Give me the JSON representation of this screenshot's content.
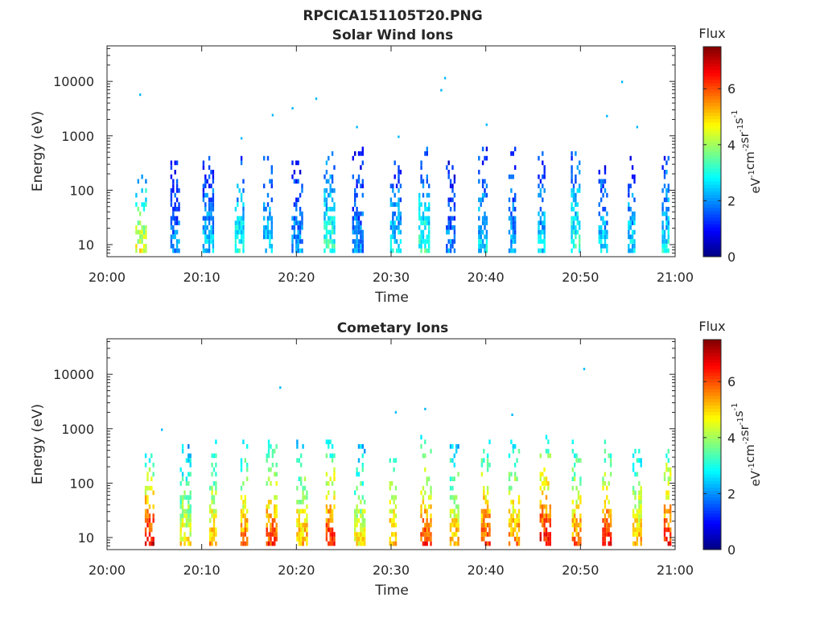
{
  "figure": {
    "title": "RPCICA151105T20.PNG"
  },
  "chart_data": [
    {
      "type": "heatmap",
      "title": "Solar Wind Ions",
      "xlabel": "Time",
      "ylabel": "Energy (eV)",
      "x_ticks": [
        "20:00",
        "20:10",
        "20:20",
        "20:30",
        "20:40",
        "20:50",
        "21:00"
      ],
      "x_range": [
        "20:00",
        "21:00"
      ],
      "y_ticks": [
        "10",
        "100",
        "1000",
        "10000"
      ],
      "y_range": [
        6,
        45000
      ],
      "y_scale": "log",
      "grid": false,
      "colorbar": {
        "label": "Flux",
        "unit": "eV-1cm-2sr-1s-1",
        "ticks": [
          "0",
          "2",
          "4",
          "6"
        ],
        "range": [
          0,
          7.5
        ],
        "colormap": "jet"
      },
      "bursts": [
        {
          "time": "20:03.6",
          "value": 4.6,
          "emax": 180
        },
        {
          "time": "20:07.2",
          "value": 2.0,
          "emax": 400
        },
        {
          "time": "20:10.7",
          "value": 2.4,
          "emax": 420
        },
        {
          "time": "20:14.0",
          "value": 3.0,
          "emax": 400
        },
        {
          "time": "20:17.0",
          "value": 2.6,
          "emax": 380
        },
        {
          "time": "20:20.1",
          "value": 2.2,
          "emax": 300
        },
        {
          "time": "20:23.5",
          "value": 3.2,
          "emax": 550
        },
        {
          "time": "20:26.5",
          "value": 2.0,
          "emax": 550
        },
        {
          "time": "20:30.5",
          "value": 2.6,
          "emax": 350
        },
        {
          "time": "20:33.5",
          "value": 3.2,
          "emax": 550
        },
        {
          "time": "20:36.3",
          "value": 2.0,
          "emax": 350
        },
        {
          "time": "20:39.7",
          "value": 2.6,
          "emax": 550
        },
        {
          "time": "20:42.8",
          "value": 2.2,
          "emax": 550
        },
        {
          "time": "20:45.9",
          "value": 2.6,
          "emax": 500
        },
        {
          "time": "20:49.5",
          "value": 3.2,
          "emax": 500
        },
        {
          "time": "20:52.4",
          "value": 2.6,
          "emax": 250
        },
        {
          "time": "20:55.4",
          "value": 2.6,
          "emax": 400
        },
        {
          "time": "20:59.0",
          "value": 2.8,
          "emax": 500
        }
      ],
      "isolated_points": [
        {
          "time": "20:03.5",
          "energy": 5700
        },
        {
          "time": "20:14.2",
          "energy": 900
        },
        {
          "time": "20:17.5",
          "energy": 2400
        },
        {
          "time": "20:19.6",
          "energy": 3200
        },
        {
          "time": "20:22.1",
          "energy": 4800
        },
        {
          "time": "20:26.4",
          "energy": 1450
        },
        {
          "time": "20:30.8",
          "energy": 960
        },
        {
          "time": "20:35.7",
          "energy": 11500
        },
        {
          "time": "20:35.3",
          "energy": 6900
        },
        {
          "time": "20:40.1",
          "energy": 1600
        },
        {
          "time": "20:54.4",
          "energy": 9800
        },
        {
          "time": "20:52.8",
          "energy": 2300
        },
        {
          "time": "20:56.0",
          "energy": 1450
        }
      ]
    },
    {
      "type": "heatmap",
      "title": "Cometary Ions",
      "xlabel": "Time",
      "ylabel": "Energy (eV)",
      "x_ticks": [
        "20:00",
        "20:10",
        "20:20",
        "20:30",
        "20:40",
        "20:50",
        "21:00"
      ],
      "x_range": [
        "20:00",
        "21:00"
      ],
      "y_ticks": [
        "10",
        "100",
        "1000",
        "10000"
      ],
      "y_range": [
        6,
        45000
      ],
      "y_scale": "log",
      "grid": false,
      "colorbar": {
        "label": "Flux",
        "unit": "eV-1cm-2sr-1s-1",
        "ticks": [
          "0",
          "2",
          "4",
          "6"
        ],
        "range": [
          0,
          7.5
        ],
        "colormap": "jet"
      },
      "bursts": [
        {
          "time": "20:04.5",
          "value": 6.8,
          "emax": 300
        },
        {
          "time": "20:08.3",
          "value": 4.8,
          "emax": 500
        },
        {
          "time": "20:11.2",
          "value": 5.4,
          "emax": 600
        },
        {
          "time": "20:14.5",
          "value": 5.8,
          "emax": 550
        },
        {
          "time": "20:17.4",
          "value": 6.2,
          "emax": 600
        },
        {
          "time": "20:20.6",
          "value": 5.4,
          "emax": 550
        },
        {
          "time": "20:23.6",
          "value": 6.4,
          "emax": 600
        },
        {
          "time": "20:26.7",
          "value": 4.8,
          "emax": 500
        },
        {
          "time": "20:30.2",
          "value": 5.4,
          "emax": 550
        },
        {
          "time": "20:33.7",
          "value": 6.2,
          "emax": 650
        },
        {
          "time": "20:36.7",
          "value": 5.4,
          "emax": 500
        },
        {
          "time": "20:40.0",
          "value": 6.2,
          "emax": 600
        },
        {
          "time": "20:43.0",
          "value": 5.8,
          "emax": 600
        },
        {
          "time": "20:46.3",
          "value": 6.6,
          "emax": 650
        },
        {
          "time": "20:49.6",
          "value": 5.8,
          "emax": 550
        },
        {
          "time": "20:52.8",
          "value": 6.4,
          "emax": 550
        },
        {
          "time": "20:56.0",
          "value": 5.4,
          "emax": 600
        },
        {
          "time": "20:59.2",
          "value": 6.4,
          "emax": 700
        }
      ],
      "isolated_points": [
        {
          "time": "20:05.8",
          "energy": 960
        },
        {
          "time": "20:18.3",
          "energy": 5700
        },
        {
          "time": "20:33.6",
          "energy": 2300
        },
        {
          "time": "20:30.5",
          "energy": 2000
        },
        {
          "time": "20:42.8",
          "energy": 1800
        },
        {
          "time": "20:50.4",
          "energy": 12500
        }
      ]
    }
  ]
}
